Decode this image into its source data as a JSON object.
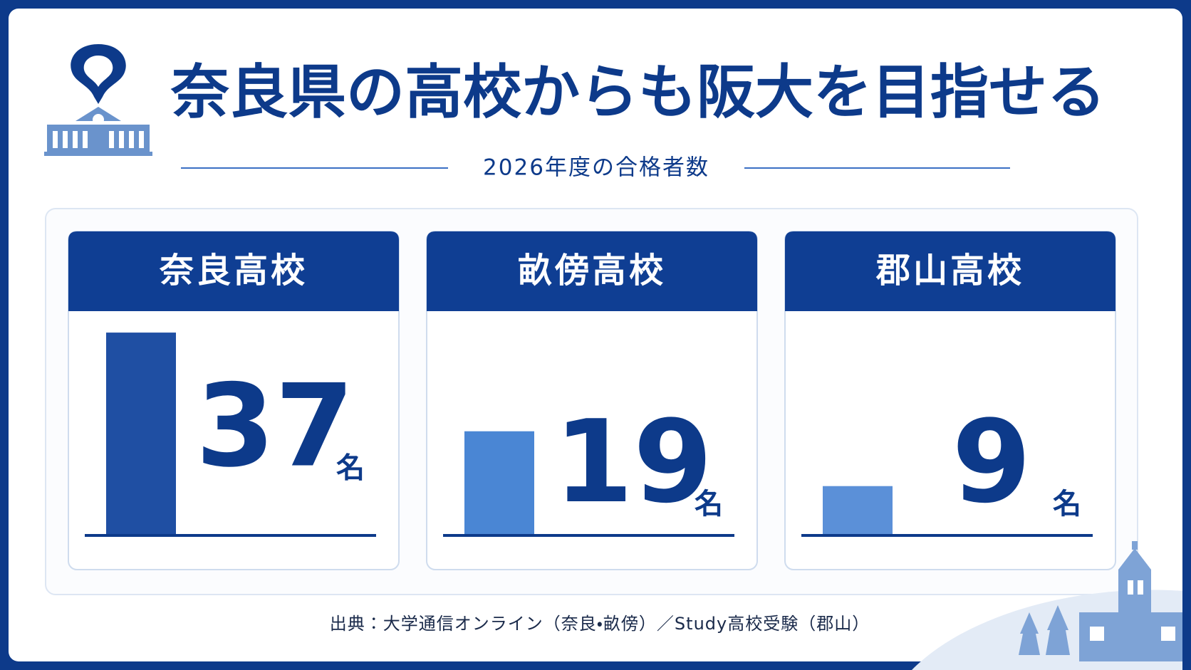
{
  "chart_data": {
    "type": "bar",
    "title": "奈良県の高校からも阪大を目指せる",
    "subtitle": "2026年度の合格者数",
    "categories": [
      "奈良高校",
      "畝傍高校",
      "郡山高校"
    ],
    "values": [
      37,
      19,
      9
    ],
    "colors": [
      "#1f4fa3",
      "#4a86d4",
      "#5b90d8"
    ],
    "unit": "名",
    "ylim": [
      0,
      40
    ],
    "source": "出典：大学通信オンライン（奈良・畝傍）／Study高校受験（郡山）"
  }
}
